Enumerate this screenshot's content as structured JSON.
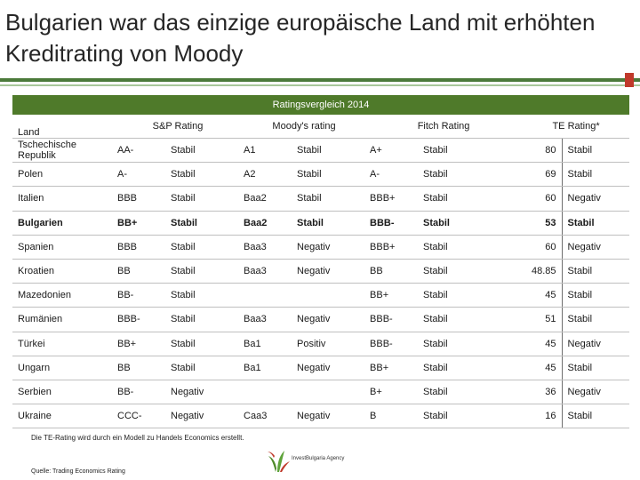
{
  "title": "Bulgarien war das einzige europäische Land mit erhöhten Kreditrating von Moody",
  "table_title": "Ratingsvergleich 2014",
  "headers": {
    "land": "Land",
    "sp": "S&P Rating",
    "moodys": "Moody's rating",
    "fitch": "Fitch Rating",
    "te": "TE Rating*"
  },
  "rows": [
    {
      "land": "Tschechische Republik",
      "sp": "AA-",
      "sp_o": "Stabil",
      "m": "A1",
      "m_o": "Stabil",
      "f": "A+",
      "f_o": "Stabil",
      "te": "80",
      "te_o": "Stabil"
    },
    {
      "land": "Polen",
      "sp": "A-",
      "sp_o": "Stabil",
      "m": "A2",
      "m_o": "Stabil",
      "f": "A-",
      "f_o": "Stabil",
      "te": "69",
      "te_o": "Stabil"
    },
    {
      "land": "Italien",
      "sp": "BBB",
      "sp_o": "Stabil",
      "m": "Baa2",
      "m_o": "Stabil",
      "f": "BBB+",
      "f_o": "Stabil",
      "te": "60",
      "te_o": "Negativ"
    },
    {
      "land": "Bulgarien",
      "sp": "BB+",
      "sp_o": "Stabil",
      "m": "Baa2",
      "m_o": "Stabil",
      "f": "BBB-",
      "f_o": "Stabil",
      "te": "53",
      "te_o": "Stabil",
      "bold": true
    },
    {
      "land": "Spanien",
      "sp": "BBB",
      "sp_o": "Stabil",
      "m": "Baa3",
      "m_o": "Negativ",
      "f": "BBB+",
      "f_o": "Stabil",
      "te": "60",
      "te_o": "Negativ"
    },
    {
      "land": "Kroatien",
      "sp": "BB",
      "sp_o": "Stabil",
      "m": "Baa3",
      "m_o": "Negativ",
      "f": "BB",
      "f_o": "Stabil",
      "te": "48.85",
      "te_o": "Stabil"
    },
    {
      "land": "Mazedonien",
      "sp": "BB-",
      "sp_o": "Stabil",
      "m": "",
      "m_o": "",
      "f": "BB+",
      "f_o": "Stabil",
      "te": "45",
      "te_o": "Stabil"
    },
    {
      "land": "Rumänien",
      "sp": "BBB-",
      "sp_o": "Stabil",
      "m": "Baa3",
      "m_o": "Negativ",
      "f": "BBB-",
      "f_o": "Stabil",
      "te": "51",
      "te_o": "Stabil"
    },
    {
      "land": "Türkei",
      "sp": "BB+",
      "sp_o": "Stabil",
      "m": "Ba1",
      "m_o": "Positiv",
      "f": "BBB-",
      "f_o": "Stabil",
      "te": "45",
      "te_o": "Negativ"
    },
    {
      "land": "Ungarn",
      "sp": "BB",
      "sp_o": "Stabil",
      "m": "Ba1",
      "m_o": "Negativ",
      "f": "BB+",
      "f_o": "Stabil",
      "te": "45",
      "te_o": "Stabil"
    },
    {
      "land": "Serbien",
      "sp": "BB-",
      "sp_o": "Negativ",
      "m": "",
      "m_o": "",
      "f": "B+",
      "f_o": "Stabil",
      "te": "36",
      "te_o": "Negativ"
    },
    {
      "land": "Ukraine",
      "sp": "CCC-",
      "sp_o": "Negativ",
      "m": "Caa3",
      "m_o": "Negativ",
      "f": "B",
      "f_o": "Stabil",
      "te": "16",
      "te_o": "Stabil"
    }
  ],
  "footnote": "Die TE-Rating wird durch ein Modell zu Handels Economics erstellt.",
  "source": "Quelle: Trading Economics Rating",
  "logo_text": "InvestBulgaria Agency",
  "colors": {
    "header_green": "#4f7a2a",
    "rule_green": "#4b7a3a",
    "accent_red": "#c0392b"
  }
}
